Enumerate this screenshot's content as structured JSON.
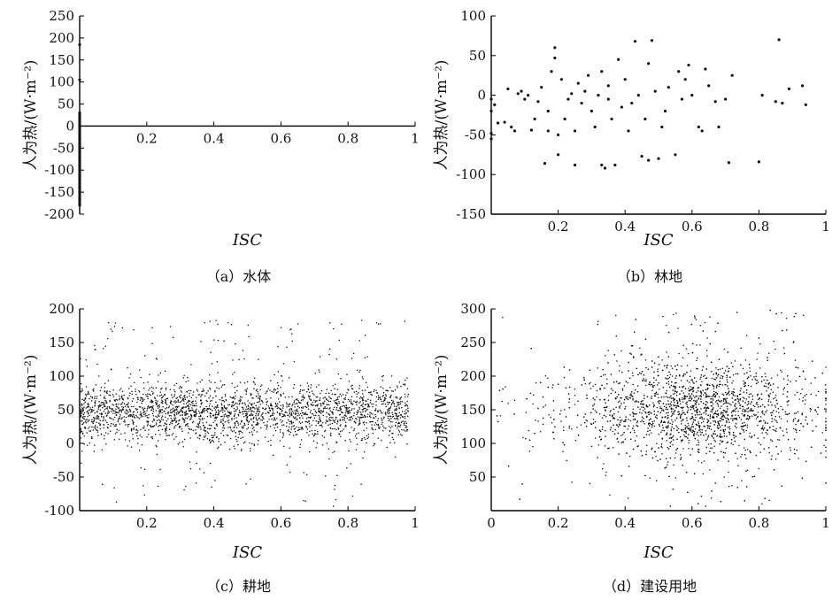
{
  "chart_data": [
    {
      "type": "scatter",
      "caption": "（a）水体",
      "xlabel": "ISC",
      "ylabel": "人为热/(W·m⁻²)",
      "xlim": [
        0,
        1
      ],
      "ylim": [
        -200,
        250
      ],
      "xticks": [
        "0.2",
        "0.4",
        "0.6",
        "0.8",
        "1"
      ],
      "yticks": [
        "-200",
        "-150",
        "-100",
        "-50",
        "0",
        "50",
        "100",
        "150",
        "200",
        "250"
      ],
      "points_description": "all points lie at ISC ≈ 0, spread vertically",
      "points": [
        [
          0,
          -180
        ],
        [
          0,
          -165
        ],
        [
          0,
          -150
        ],
        [
          0,
          -140
        ],
        [
          0,
          -130
        ],
        [
          0,
          -120
        ],
        [
          0,
          -110
        ],
        [
          0,
          -100
        ],
        [
          0,
          -90
        ],
        [
          0,
          -80
        ],
        [
          0,
          -70
        ],
        [
          0,
          -60
        ],
        [
          0,
          -50
        ],
        [
          0,
          -40
        ],
        [
          0,
          -30
        ],
        [
          0,
          -20
        ],
        [
          0,
          -10
        ],
        [
          0,
          0
        ],
        [
          0,
          10
        ],
        [
          0,
          20
        ],
        [
          0,
          30
        ],
        [
          0,
          105
        ],
        [
          0,
          185
        ]
      ]
    },
    {
      "type": "scatter",
      "caption": "（b）林地",
      "xlabel": "ISC",
      "ylabel": "人为热/(W·m⁻²)",
      "xlim": [
        0,
        1
      ],
      "ylim": [
        -150,
        100
      ],
      "xticks": [
        "0.2",
        "0.4",
        "0.6",
        "0.8",
        "1"
      ],
      "yticks": [
        "-150",
        "-100",
        "-50",
        "0",
        "50",
        "100"
      ],
      "points": [
        [
          0.0,
          -55
        ],
        [
          0.0,
          -48
        ],
        [
          0.0,
          -20
        ],
        [
          0.0,
          -5
        ],
        [
          0.01,
          -12
        ],
        [
          0.02,
          -35
        ],
        [
          0.04,
          -34
        ],
        [
          0.05,
          8
        ],
        [
          0.06,
          -40
        ],
        [
          0.07,
          -45
        ],
        [
          0.08,
          2
        ],
        [
          0.09,
          5
        ],
        [
          0.1,
          -5
        ],
        [
          0.11,
          0
        ],
        [
          0.12,
          -44
        ],
        [
          0.13,
          -30
        ],
        [
          0.14,
          -8
        ],
        [
          0.15,
          10
        ],
        [
          0.16,
          -86
        ],
        [
          0.17,
          -45
        ],
        [
          0.17,
          -20
        ],
        [
          0.18,
          30
        ],
        [
          0.19,
          60
        ],
        [
          0.19,
          47
        ],
        [
          0.2,
          -75
        ],
        [
          0.2,
          -50
        ],
        [
          0.21,
          20
        ],
        [
          0.22,
          -30
        ],
        [
          0.23,
          -5
        ],
        [
          0.24,
          2
        ],
        [
          0.25,
          -88
        ],
        [
          0.25,
          -45
        ],
        [
          0.26,
          15
        ],
        [
          0.27,
          -10
        ],
        [
          0.28,
          5
        ],
        [
          0.29,
          25
        ],
        [
          0.3,
          -20
        ],
        [
          0.31,
          -40
        ],
        [
          0.32,
          0
        ],
        [
          0.33,
          30
        ],
        [
          0.33,
          -88
        ],
        [
          0.34,
          -92
        ],
        [
          0.35,
          -5
        ],
        [
          0.35,
          12
        ],
        [
          0.36,
          -30
        ],
        [
          0.37,
          -88
        ],
        [
          0.38,
          45
        ],
        [
          0.39,
          -15
        ],
        [
          0.4,
          20
        ],
        [
          0.41,
          -45
        ],
        [
          0.42,
          -10
        ],
        [
          0.43,
          68
        ],
        [
          0.44,
          0
        ],
        [
          0.45,
          -77
        ],
        [
          0.46,
          -30
        ],
        [
          0.47,
          40
        ],
        [
          0.47,
          -82
        ],
        [
          0.48,
          69
        ],
        [
          0.49,
          5
        ],
        [
          0.5,
          -80
        ],
        [
          0.51,
          -40
        ],
        [
          0.52,
          -20
        ],
        [
          0.53,
          10
        ],
        [
          0.55,
          -75
        ],
        [
          0.56,
          30
        ],
        [
          0.57,
          -5
        ],
        [
          0.58,
          20
        ],
        [
          0.59,
          38
        ],
        [
          0.6,
          0
        ],
        [
          0.62,
          -40
        ],
        [
          0.63,
          -45
        ],
        [
          0.64,
          33
        ],
        [
          0.65,
          12
        ],
        [
          0.67,
          -8
        ],
        [
          0.68,
          -40
        ],
        [
          0.7,
          -5
        ],
        [
          0.71,
          -85
        ],
        [
          0.72,
          25
        ],
        [
          0.8,
          -84
        ],
        [
          0.81,
          0
        ],
        [
          0.85,
          -8
        ],
        [
          0.86,
          70
        ],
        [
          0.87,
          -10
        ],
        [
          0.89,
          8
        ],
        [
          0.93,
          12
        ],
        [
          0.94,
          -12
        ]
      ]
    },
    {
      "type": "scatter",
      "caption": "（c）耕地",
      "xlabel": "ISC",
      "ylabel": "人为热/(W·m⁻²)",
      "xlim": [
        0,
        1
      ],
      "ylim": [
        -100,
        200
      ],
      "xticks": [
        "0.2",
        "0.4",
        "0.6",
        "0.8",
        "1"
      ],
      "yticks": [
        "-100",
        "-50",
        "0",
        "50",
        "100",
        "150",
        "200"
      ],
      "density": {
        "center": 45,
        "spread": 22,
        "count": 2600,
        "outliers_high": [
          100,
          185
        ],
        "outliers_low": [
          -95,
          -20
        ],
        "x_range": [
          0,
          0.98
        ]
      }
    },
    {
      "type": "scatter",
      "caption": "（d）建设用地",
      "xlabel": "ISC",
      "ylabel": "人为热/(W·m⁻²)",
      "xlim": [
        0,
        1
      ],
      "ylim": [
        0,
        300
      ],
      "xticks": [
        "0",
        "0.2",
        "0.4",
        "0.6",
        "0.8",
        "1"
      ],
      "yticks": [
        "50",
        "100",
        "150",
        "200",
        "250",
        "300"
      ],
      "density": {
        "center": 150,
        "spread": 35,
        "count": 2600,
        "x_center": 0.62,
        "x_spread": 0.17,
        "y_range": [
          5,
          298
        ]
      }
    }
  ]
}
